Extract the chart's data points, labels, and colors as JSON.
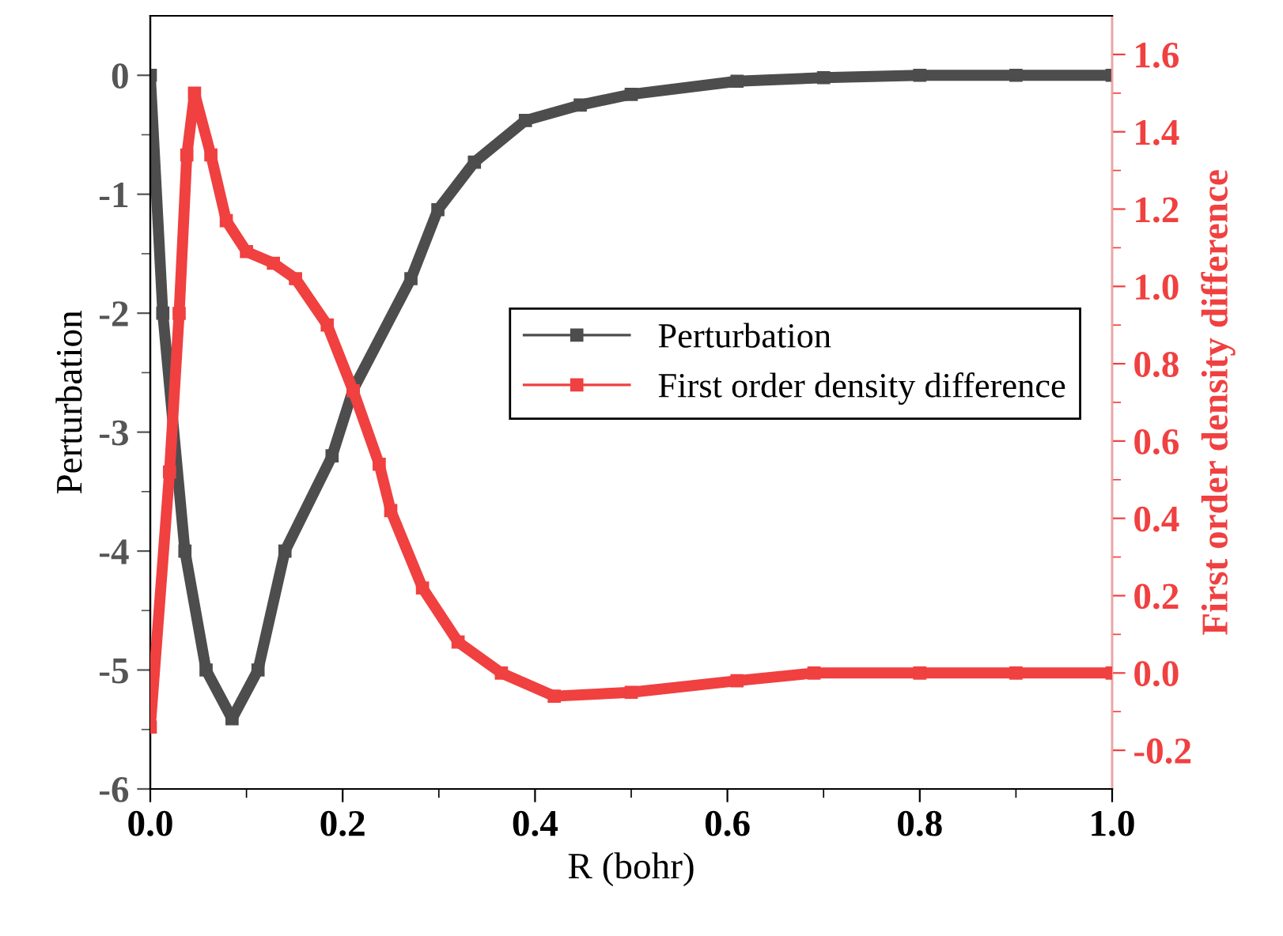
{
  "chart_data": {
    "type": "line",
    "xlabel": "R (bohr)",
    "ylabel": "Perturbation",
    "y2label": "First order density difference",
    "xlim": [
      0,
      1.0
    ],
    "xticks": [
      {
        "value": 0,
        "label": "0.0"
      },
      0.2,
      0.4,
      0.6,
      0.8,
      {
        "value": 1.0,
        "label": "1.0"
      }
    ],
    "ylim": [
      -6,
      0.5
    ],
    "yticks": [
      -6,
      -5,
      -4,
      -3,
      -2,
      -1,
      0
    ],
    "y2lim": [
      -0.3,
      1.7
    ],
    "y2ticks": [
      -0.2,
      {
        "value": 0,
        "label": "0.0"
      },
      0.2,
      0.4,
      0.6,
      0.8,
      {
        "value": 1.0,
        "label": "1.0"
      },
      1.2,
      1.4,
      1.6
    ],
    "legend": "center right",
    "marker": "square",
    "line_style": "solid",
    "grid": false,
    "series": [
      {
        "name": "Perturbation",
        "color": "#4d4d4d",
        "x": [
          0,
          0.013,
          0.036,
          0.058,
          0.085,
          0.112,
          0.14,
          0.189,
          0.211,
          0.271,
          0.299,
          0.337,
          0.39,
          0.447,
          0.5,
          0.61,
          0.7,
          0.8,
          0.9,
          1.0
        ],
        "values": [
          0,
          -2,
          -4,
          -5,
          -5.41,
          -5,
          -4,
          -3.2,
          -2.64,
          -1.71,
          -1.13,
          -0.73,
          -0.38,
          -0.25,
          -0.16,
          -0.05,
          -0.02,
          0,
          0,
          0
        ]
      },
      {
        "name": "First order density difference",
        "color": "#f04040",
        "axis": "y2",
        "x": [
          0,
          0.02,
          0.03,
          0.038,
          0.046,
          0.063,
          0.079,
          0.1,
          0.128,
          0.151,
          0.184,
          0.211,
          0.238,
          0.25,
          0.283,
          0.32,
          0.365,
          0.42,
          0.5,
          0.61,
          0.69,
          0.8,
          0.9,
          1.0
        ],
        "values": [
          -0.14,
          0.52,
          0.93,
          1.34,
          1.5,
          1.34,
          1.17,
          1.09,
          1.06,
          1.02,
          0.9,
          0.73,
          0.54,
          0.42,
          0.22,
          0.08,
          0.0,
          -0.06,
          -0.05,
          -0.02,
          0,
          0,
          0,
          0
        ]
      }
    ]
  }
}
